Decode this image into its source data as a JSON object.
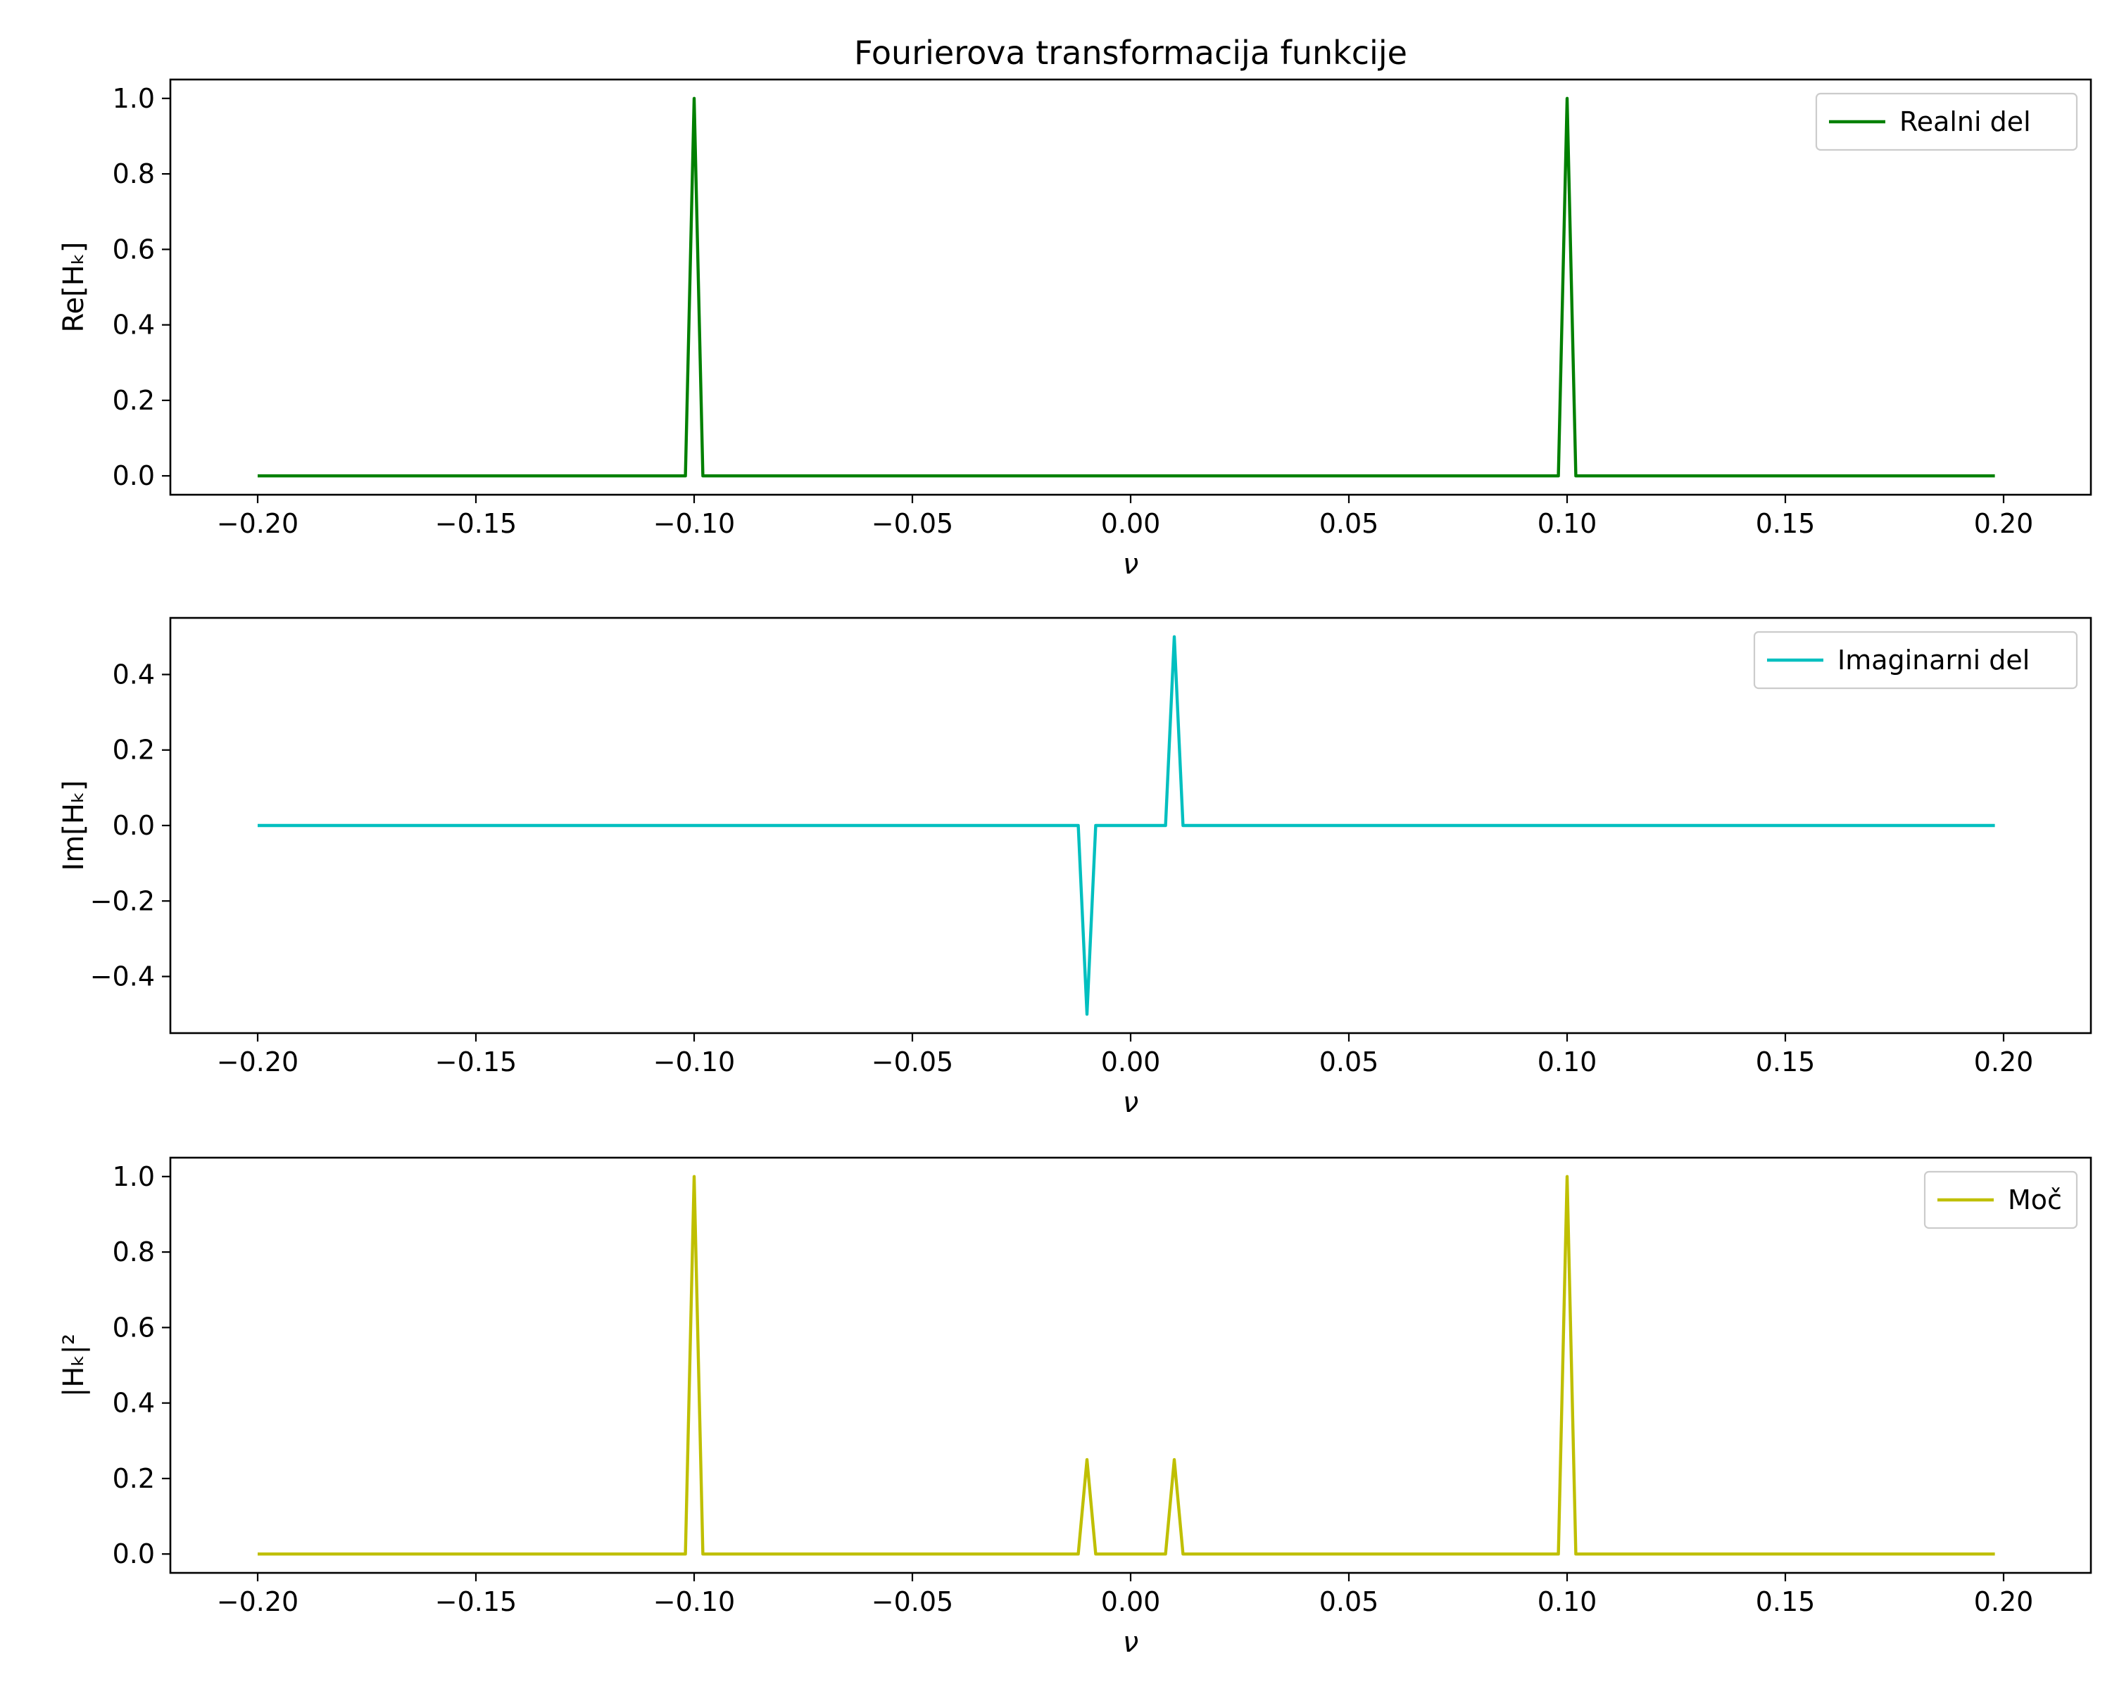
{
  "chart_data": [
    {
      "type": "line",
      "title": "Fourierova transformacija funkcije",
      "xlabel": "ν",
      "ylabel": "Re[Hₖ]",
      "xlim": [
        -0.22,
        0.22
      ],
      "ylim": [
        -0.05,
        1.05
      ],
      "x_ticks": [
        -0.2,
        -0.15,
        -0.1,
        -0.05,
        0.0,
        0.05,
        0.1,
        0.15,
        0.2
      ],
      "x_tick_labels": [
        "−0.20",
        "−0.15",
        "−0.10",
        "−0.05",
        "0.00",
        "0.05",
        "0.10",
        "0.15",
        "0.20"
      ],
      "y_ticks": [
        0.0,
        0.2,
        0.4,
        0.6,
        0.8,
        1.0
      ],
      "y_tick_labels": [
        "0.0",
        "0.2",
        "0.4",
        "0.6",
        "0.8",
        "1.0"
      ],
      "legend_position": "top-right",
      "grid": false,
      "series": [
        {
          "name": "Realni del",
          "color": "#008000",
          "x": [
            -0.2,
            -0.102,
            -0.1,
            -0.098,
            0.098,
            0.1,
            0.102,
            0.198
          ],
          "y": [
            0.0,
            0.0,
            1.0,
            0.0,
            0.0,
            1.0,
            0.0,
            0.0
          ]
        }
      ]
    },
    {
      "type": "line",
      "title": "",
      "xlabel": "ν",
      "ylabel": "Im[Hₖ]",
      "xlim": [
        -0.22,
        0.22
      ],
      "ylim": [
        -0.55,
        0.55
      ],
      "x_ticks": [
        -0.2,
        -0.15,
        -0.1,
        -0.05,
        0.0,
        0.05,
        0.1,
        0.15,
        0.2
      ],
      "x_tick_labels": [
        "−0.20",
        "−0.15",
        "−0.10",
        "−0.05",
        "0.00",
        "0.05",
        "0.10",
        "0.15",
        "0.20"
      ],
      "y_ticks": [
        -0.4,
        -0.2,
        0.0,
        0.2,
        0.4
      ],
      "y_tick_labels": [
        "−0.4",
        "−0.2",
        "0.0",
        "0.2",
        "0.4"
      ],
      "legend_position": "top-right",
      "grid": false,
      "series": [
        {
          "name": "Imaginarni del",
          "color": "#00bfbf",
          "x": [
            -0.2,
            -0.012,
            -0.01,
            -0.008,
            0.008,
            0.01,
            0.012,
            0.198
          ],
          "y": [
            0.0,
            0.0,
            -0.5,
            0.0,
            0.0,
            0.5,
            0.0,
            0.0
          ]
        }
      ]
    },
    {
      "type": "line",
      "title": "",
      "xlabel": "ν",
      "ylabel": "|Hₖ|²",
      "xlim": [
        -0.22,
        0.22
      ],
      "ylim": [
        -0.05,
        1.05
      ],
      "x_ticks": [
        -0.2,
        -0.15,
        -0.1,
        -0.05,
        0.0,
        0.05,
        0.1,
        0.15,
        0.2
      ],
      "x_tick_labels": [
        "−0.20",
        "−0.15",
        "−0.10",
        "−0.05",
        "0.00",
        "0.05",
        "0.10",
        "0.15",
        "0.20"
      ],
      "y_ticks": [
        0.0,
        0.2,
        0.4,
        0.6,
        0.8,
        1.0
      ],
      "y_tick_labels": [
        "0.0",
        "0.2",
        "0.4",
        "0.6",
        "0.8",
        "1.0"
      ],
      "legend_position": "top-right",
      "grid": false,
      "series": [
        {
          "name": "Moč",
          "color": "#bfbf00",
          "x": [
            -0.2,
            -0.102,
            -0.1,
            -0.098,
            -0.012,
            -0.01,
            -0.008,
            0.008,
            0.01,
            0.012,
            0.098,
            0.1,
            0.102,
            0.198
          ],
          "y": [
            0.0,
            0.0,
            1.0,
            0.0,
            0.0,
            0.25,
            0.0,
            0.0,
            0.25,
            0.0,
            0.0,
            1.0,
            0.0,
            0.0
          ]
        }
      ]
    }
  ]
}
